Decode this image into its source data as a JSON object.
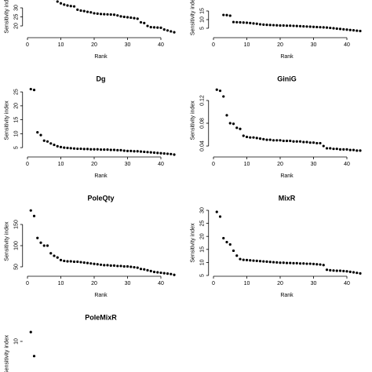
{
  "chart_data": [
    {
      "type": "scatter",
      "xlabel": "Rank",
      "ylabel": "Sensitivity index",
      "color": "#000000",
      "x": [
        8,
        9,
        10,
        11,
        12,
        13,
        14,
        15,
        16,
        17,
        18,
        19,
        20,
        21,
        22,
        23,
        24,
        25,
        26,
        27,
        28,
        29,
        30,
        31,
        32,
        33,
        34,
        35,
        36,
        37,
        38,
        39,
        40,
        41,
        42,
        43,
        44
      ],
      "values": [
        35.0,
        33.5,
        32.5,
        31.8,
        31.3,
        31.0,
        30.8,
        29.0,
        28.5,
        28.2,
        27.8,
        27.5,
        27.0,
        26.8,
        26.6,
        26.5,
        26.4,
        26.3,
        26.2,
        25.8,
        25.3,
        25.0,
        24.8,
        24.6,
        24.3,
        24.0,
        22.0,
        21.6,
        20.0,
        19.3,
        19.2,
        19.1,
        19.0,
        18.0,
        17.5,
        17.0,
        16.5
      ],
      "xlim": [
        -1,
        45
      ],
      "xticks": [
        0,
        10,
        20,
        30,
        40
      ],
      "ylim": [
        15.5,
        38
      ],
      "yticks": [
        20,
        25,
        30
      ]
    },
    {
      "type": "scatter",
      "xlabel": "Rank",
      "ylabel": "Sensitivity index",
      "color": "#000000",
      "x": [
        3,
        4,
        5,
        6,
        7,
        8,
        9,
        10,
        11,
        12,
        13,
        14,
        15,
        16,
        17,
        18,
        19,
        20,
        21,
        22,
        23,
        24,
        25,
        26,
        27,
        28,
        29,
        30,
        31,
        32,
        33,
        34,
        35,
        36,
        37,
        38,
        39,
        40,
        41,
        42,
        43,
        44
      ],
      "values": [
        12.7,
        12.6,
        12.3,
        8.6,
        8.5,
        8.4,
        8.3,
        8.2,
        8.0,
        7.8,
        7.6,
        7.3,
        7.1,
        7.0,
        6.9,
        6.8,
        6.7,
        6.6,
        6.6,
        6.5,
        6.5,
        6.4,
        6.3,
        6.2,
        6.1,
        6.0,
        5.9,
        5.8,
        5.7,
        5.6,
        5.5,
        5.4,
        5.2,
        5.0,
        4.8,
        4.6,
        4.4,
        4.2,
        4.0,
        3.8,
        3.6,
        3.4
      ],
      "xlim": [
        -1,
        45
      ],
      "xticks": [
        0,
        10,
        20,
        30,
        40
      ],
      "ylim": [
        2.5,
        22
      ],
      "yticks": [
        5,
        10,
        15
      ]
    },
    {
      "type": "scatter",
      "title": "Dg",
      "xlabel": "Rank",
      "ylabel": "Sensitivity index",
      "color": "#000000",
      "x": [
        1,
        2,
        3,
        4,
        5,
        6,
        7,
        8,
        9,
        10,
        11,
        12,
        13,
        14,
        15,
        16,
        17,
        18,
        19,
        20,
        21,
        22,
        23,
        24,
        25,
        26,
        27,
        28,
        29,
        30,
        31,
        32,
        33,
        34,
        35,
        36,
        37,
        38,
        39,
        40,
        41,
        42,
        43,
        44
      ],
      "values": [
        26.0,
        25.7,
        10.5,
        9.5,
        7.5,
        7.2,
        6.5,
        6.0,
        5.5,
        5.2,
        5.0,
        4.9,
        4.8,
        4.7,
        4.6,
        4.6,
        4.5,
        4.5,
        4.4,
        4.4,
        4.4,
        4.3,
        4.3,
        4.3,
        4.2,
        4.2,
        4.1,
        4.1,
        3.9,
        3.8,
        3.8,
        3.7,
        3.7,
        3.6,
        3.5,
        3.4,
        3.3,
        3.2,
        3.1,
        3.0,
        2.9,
        2.8,
        2.7,
        2.5
      ],
      "xlim": [
        -1,
        45
      ],
      "xticks": [
        0,
        10,
        20,
        30,
        40
      ],
      "ylim": [
        2.5,
        27
      ],
      "yticks": [
        5,
        10,
        15,
        20,
        25
      ]
    },
    {
      "type": "scatter",
      "title": "GiniG",
      "xlabel": "Rank",
      "ylabel": "Sensitivity index",
      "color": "#000000",
      "x": [
        1,
        2,
        3,
        4,
        5,
        6,
        7,
        8,
        9,
        10,
        11,
        12,
        13,
        14,
        15,
        16,
        17,
        18,
        19,
        20,
        21,
        22,
        23,
        24,
        25,
        26,
        27,
        28,
        29,
        30,
        31,
        32,
        33,
        34,
        35,
        36,
        37,
        38,
        39,
        40,
        41,
        42,
        43,
        44
      ],
      "values": [
        0.139,
        0.137,
        0.127,
        0.094,
        0.08,
        0.079,
        0.072,
        0.07,
        0.058,
        0.056,
        0.055,
        0.055,
        0.054,
        0.053,
        0.052,
        0.051,
        0.051,
        0.05,
        0.05,
        0.05,
        0.049,
        0.049,
        0.049,
        0.048,
        0.048,
        0.048,
        0.047,
        0.047,
        0.046,
        0.046,
        0.045,
        0.045,
        0.04,
        0.036,
        0.036,
        0.035,
        0.035,
        0.034,
        0.034,
        0.034,
        0.033,
        0.033,
        0.032,
        0.032
      ],
      "xlim": [
        -1,
        45
      ],
      "xticks": [
        0,
        10,
        20,
        30,
        40
      ],
      "ylim": [
        0.03,
        0.14
      ],
      "yticks": [
        0.04,
        0.08,
        0.12
      ]
    },
    {
      "type": "scatter",
      "title": "PoleQty",
      "xlabel": "Rank",
      "ylabel": "Sensitivity index",
      "color": "#000000",
      "x": [
        1,
        2,
        3,
        4,
        5,
        6,
        7,
        8,
        9,
        10,
        11,
        12,
        13,
        14,
        15,
        16,
        17,
        18,
        19,
        20,
        21,
        22,
        23,
        24,
        25,
        26,
        27,
        28,
        29,
        30,
        31,
        32,
        33,
        34,
        35,
        36,
        37,
        38,
        39,
        40,
        41,
        42,
        43,
        44
      ],
      "values": [
        183,
        170,
        118,
        107,
        100,
        100,
        82,
        76,
        72,
        66,
        64,
        63,
        63,
        62,
        62,
        61,
        60,
        59,
        58,
        57,
        56,
        55,
        54,
        54,
        53,
        53,
        52,
        52,
        51,
        51,
        50,
        49,
        48,
        45,
        44,
        42,
        40,
        38,
        37,
        36,
        35,
        34,
        33,
        31
      ],
      "xlim": [
        -1,
        45
      ],
      "xticks": [
        0,
        10,
        20,
        30,
        40
      ],
      "ylim": [
        30,
        190
      ],
      "yticks": [
        50,
        100,
        150
      ]
    },
    {
      "type": "scatter",
      "title": "MixR",
      "xlabel": "Rank",
      "ylabel": "Sensitivity index",
      "color": "#000000",
      "x": [
        1,
        2,
        3,
        4,
        5,
        6,
        7,
        8,
        9,
        10,
        11,
        12,
        13,
        14,
        15,
        16,
        17,
        18,
        19,
        20,
        21,
        22,
        23,
        24,
        25,
        26,
        27,
        28,
        29,
        30,
        31,
        32,
        33,
        34,
        35,
        36,
        37,
        38,
        39,
        40,
        41,
        42,
        43,
        44
      ],
      "values": [
        29.4,
        27.6,
        19.3,
        17.8,
        16.9,
        14.5,
        12.6,
        11.3,
        11.0,
        10.9,
        10.8,
        10.7,
        10.6,
        10.5,
        10.4,
        10.3,
        10.2,
        10.1,
        10.0,
        9.9,
        9.9,
        9.8,
        9.8,
        9.7,
        9.7,
        9.6,
        9.6,
        9.5,
        9.5,
        9.4,
        9.3,
        9.2,
        9.0,
        7.2,
        7.0,
        6.9,
        6.8,
        6.8,
        6.7,
        6.6,
        6.4,
        6.2,
        6.0,
        5.8
      ],
      "xlim": [
        -1,
        45
      ],
      "xticks": [
        0,
        10,
        20,
        30,
        40
      ],
      "ylim": [
        5,
        30
      ],
      "yticks": [
        5,
        10,
        15,
        20,
        25,
        30
      ]
    },
    {
      "type": "scatter",
      "title": "PoleMixR",
      "ylabel": "Sensitivity index",
      "color": "#000000",
      "x": [
        1,
        2
      ],
      "values": [
        11.4,
        7.8
      ],
      "xlim": [
        -1,
        45
      ],
      "ylim": [
        4,
        12
      ],
      "yticks": [
        10
      ]
    }
  ]
}
